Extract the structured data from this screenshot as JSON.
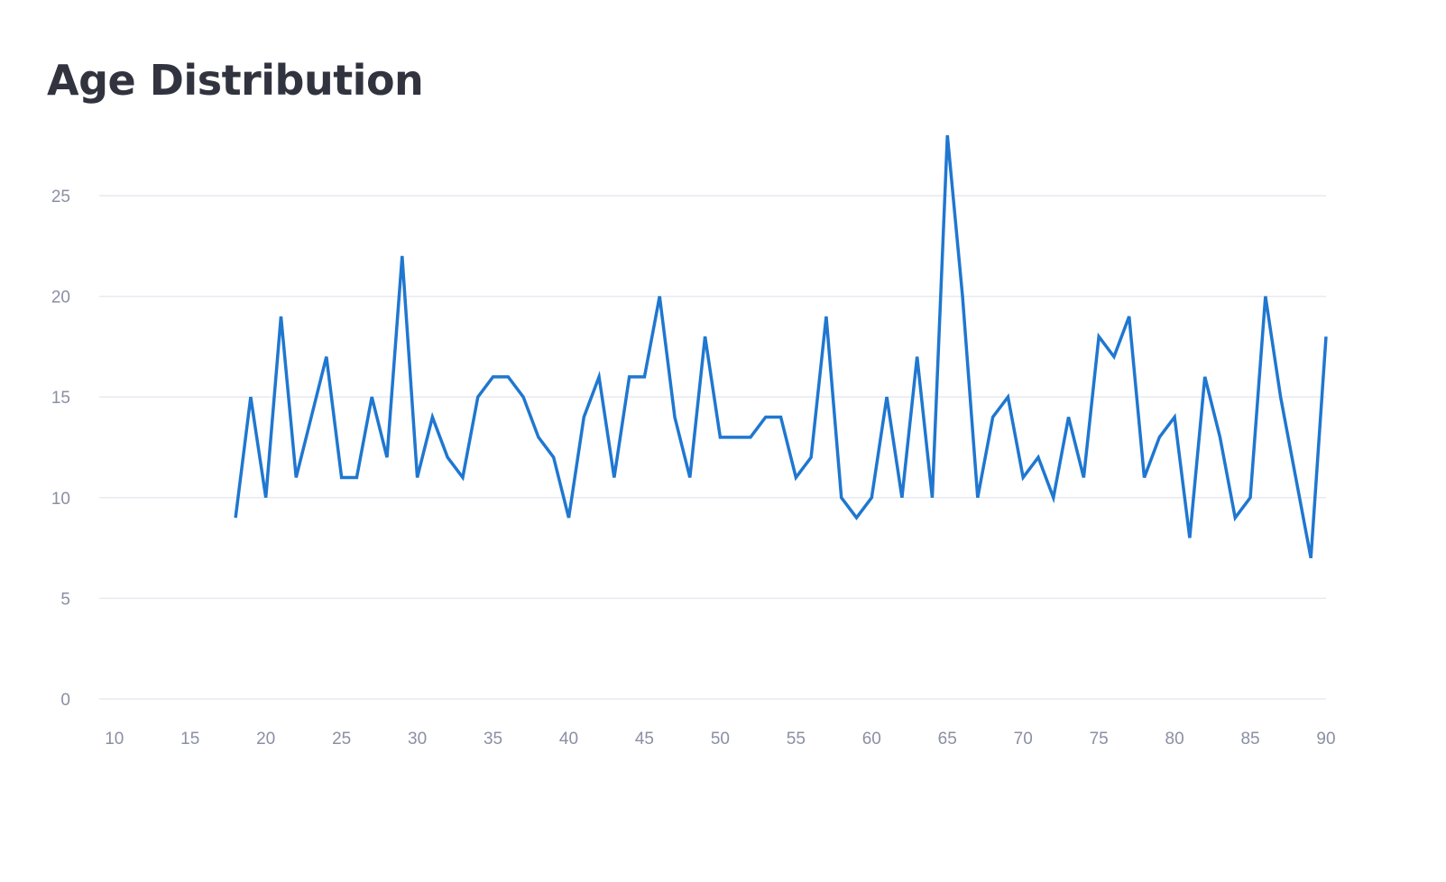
{
  "chart_data": {
    "type": "line",
    "title": "Age Distribution",
    "xlabel": "",
    "ylabel": "",
    "xlim": [
      9,
      90
    ],
    "ylim": [
      0,
      28
    ],
    "x_ticks": [
      10,
      15,
      20,
      25,
      30,
      35,
      40,
      45,
      50,
      55,
      60,
      65,
      70,
      75,
      80,
      85,
      90
    ],
    "y_ticks": [
      0,
      5,
      10,
      15,
      20,
      25
    ],
    "grid": "horizontal",
    "line_color": "#1f77d0",
    "series": [
      {
        "x": [
          18,
          19,
          20,
          21,
          22,
          23,
          24,
          25,
          26,
          27,
          28,
          29,
          30,
          31,
          32,
          33,
          34,
          35,
          36,
          37,
          38,
          39,
          40,
          41,
          42,
          43,
          44,
          45,
          46,
          47,
          48,
          49,
          50,
          51,
          52,
          53,
          54,
          55,
          56,
          57,
          58,
          59,
          60,
          61,
          62,
          63,
          64,
          65,
          66,
          67,
          68,
          69,
          70,
          71,
          72,
          73,
          74,
          75,
          76,
          77,
          78,
          79,
          80,
          81,
          82,
          83,
          84,
          85,
          86,
          87,
          88,
          89,
          90
        ],
        "values": [
          9,
          15,
          10,
          19,
          11,
          14,
          17,
          11,
          11,
          15,
          12,
          22,
          11,
          14,
          12,
          11,
          15,
          16,
          16,
          15,
          13,
          12,
          9,
          14,
          16,
          11,
          16,
          16,
          20,
          14,
          11,
          18,
          13,
          13,
          13,
          14,
          14,
          11,
          12,
          19,
          10,
          9,
          10,
          15,
          10,
          17,
          10,
          28,
          20,
          10,
          14,
          15,
          11,
          12,
          10,
          14,
          11,
          18,
          17,
          19,
          11,
          13,
          14,
          8,
          16,
          13,
          9,
          10,
          20,
          15,
          11,
          7,
          18
        ]
      }
    ]
  }
}
